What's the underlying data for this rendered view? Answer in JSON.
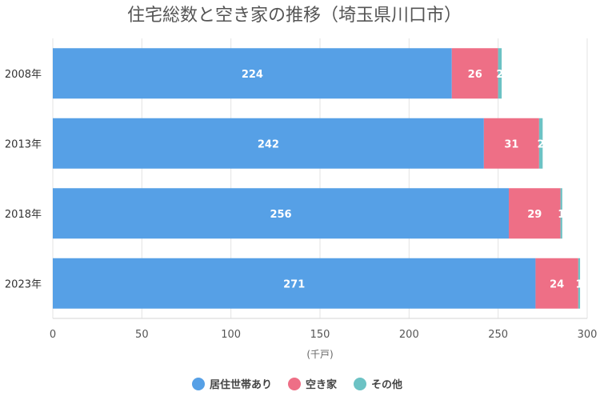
{
  "chart_data": {
    "type": "bar",
    "orientation": "horizontal",
    "stacked": true,
    "title": "住宅総数と空き家の推移（埼玉県川口市）",
    "xlabel": "(千戸)",
    "ylabel": "",
    "xlim": [
      0,
      300
    ],
    "x_ticks": [
      "0",
      "50",
      "100",
      "150",
      "200",
      "250",
      "300"
    ],
    "categories": [
      "2008年",
      "2013年",
      "2018年",
      "2023年"
    ],
    "series": [
      {
        "name": "居住世帯あり",
        "color": "#56a0e6",
        "values": [
          224,
          242,
          256,
          271
        ]
      },
      {
        "name": "空き家",
        "color": "#ee6f86",
        "values": [
          26,
          31,
          29,
          24
        ]
      },
      {
        "name": "その他",
        "color": "#6cc2c4",
        "values": [
          2,
          2,
          1,
          1
        ]
      }
    ],
    "grid": true,
    "legend_position": "bottom"
  }
}
